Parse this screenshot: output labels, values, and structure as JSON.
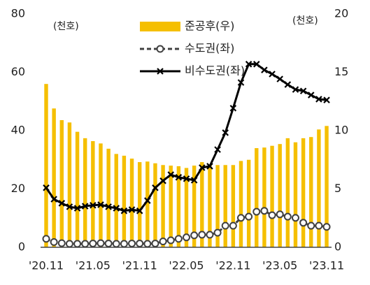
{
  "chart_data": {
    "type": "bar",
    "categories": [
      "'20.11",
      null,
      null,
      null,
      null,
      null,
      "'21.05",
      null,
      null,
      null,
      null,
      null,
      "'21.11",
      null,
      null,
      null,
      null,
      null,
      "'22.05",
      null,
      null,
      null,
      null,
      null,
      "'22.11",
      null,
      null,
      null,
      null,
      null,
      "'23.05",
      null,
      null,
      null,
      null,
      null,
      "'23.11"
    ],
    "ylabel": "(천호)",
    "y2label": "(천호)",
    "ylim": [
      0,
      80
    ],
    "yticks": [
      0,
      20,
      40,
      60,
      80
    ],
    "y2lim": [
      0,
      20
    ],
    "y2ticks": [
      0,
      5,
      10,
      15,
      20
    ],
    "legend": "top",
    "series": [
      {
        "name": "준공후(우)",
        "type": "bar",
        "axis": "y2",
        "color": "#f5bf00",
        "values": [
          14.0,
          11.9,
          10.9,
          10.7,
          9.9,
          9.35,
          9.1,
          8.9,
          8.45,
          8.0,
          7.85,
          7.6,
          7.3,
          7.35,
          7.2,
          7.05,
          7.0,
          6.95,
          6.8,
          7.0,
          7.3,
          7.1,
          7.05,
          7.05,
          7.05,
          7.4,
          7.5,
          8.5,
          8.55,
          8.7,
          8.85,
          9.35,
          9.0,
          9.35,
          9.45,
          10.1,
          10.4
        ]
      },
      {
        "name": "수도권(좌)",
        "type": "line",
        "color": "#404040",
        "marker": "circle",
        "dashed": true,
        "values": [
          2.9,
          1.8,
          1.4,
          1.2,
          1.2,
          1.2,
          1.3,
          1.4,
          1.3,
          1.2,
          1.2,
          1.3,
          1.3,
          1.2,
          1.3,
          2.0,
          2.4,
          2.9,
          3.4,
          4.1,
          4.3,
          4.3,
          5.0,
          7.4,
          7.4,
          10.1,
          10.5,
          12.2,
          12.5,
          11.0,
          11.3,
          10.5,
          10.1,
          8.4,
          7.4,
          7.4,
          7.0
        ]
      },
      {
        "name": "비수도권(좌)",
        "type": "line",
        "color": "#000000",
        "marker": "x",
        "dashed": false,
        "values": [
          20.4,
          16.5,
          15.1,
          13.9,
          13.4,
          14.1,
          14.4,
          14.6,
          13.9,
          13.4,
          12.5,
          12.9,
          12.5,
          16.0,
          20.4,
          22.8,
          24.9,
          24.0,
          23.5,
          23.0,
          27.3,
          27.8,
          33.5,
          39.3,
          47.7,
          56.5,
          62.8,
          62.8,
          60.8,
          59.4,
          57.7,
          55.8,
          54.1,
          53.6,
          52.2,
          50.8,
          50.5
        ]
      }
    ]
  }
}
